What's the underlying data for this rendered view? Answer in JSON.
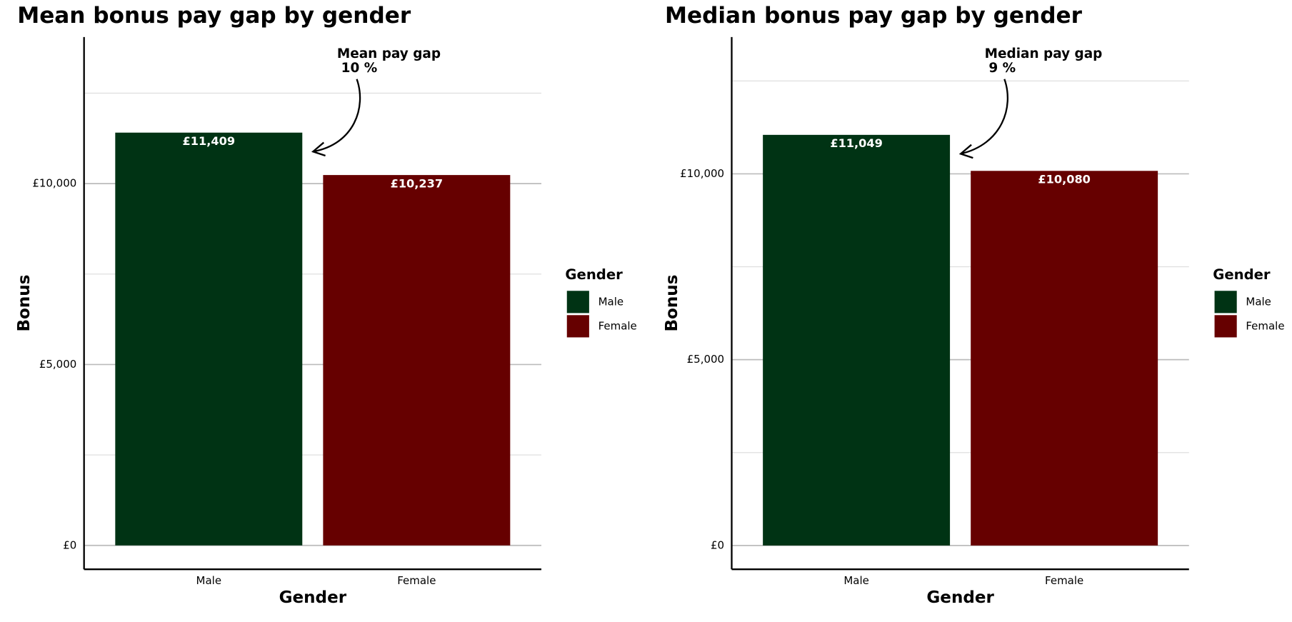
{
  "chart_data": [
    {
      "type": "bar",
      "title": "Mean bonus pay gap by gender",
      "x_label": "Gender",
      "y_label": "Bonus",
      "categories": [
        "Male",
        "Female"
      ],
      "values": [
        11409,
        10237
      ],
      "value_labels": [
        "£11,409",
        "£10,237"
      ],
      "colors": [
        "#003314",
        "#660000"
      ],
      "ylim": [
        -660,
        14050
      ],
      "yticks": [
        {
          "value": 0,
          "label": "£0"
        },
        {
          "value": 5000,
          "label": "£5,000"
        },
        {
          "value": 10000,
          "label": "£10,000"
        }
      ],
      "minor_yticks": [
        2500,
        7500,
        12500
      ],
      "grid": true,
      "legend": {
        "title": "Gender",
        "position": "right"
      },
      "annotation": {
        "title": "Mean pay gap",
        "text": "10 %"
      }
    },
    {
      "type": "bar",
      "title": "Median bonus pay gap by gender",
      "x_label": "Gender",
      "y_label": "Bonus",
      "categories": [
        "Male",
        "Female"
      ],
      "values": [
        11049,
        10080
      ],
      "value_labels": [
        "£11,049",
        "£10,080"
      ],
      "colors": [
        "#003314",
        "#660000"
      ],
      "ylim": [
        -640,
        13680
      ],
      "yticks": [
        {
          "value": 0,
          "label": "£0"
        },
        {
          "value": 5000,
          "label": "£5,000"
        },
        {
          "value": 10000,
          "label": "£10,000"
        }
      ],
      "minor_yticks": [
        2500,
        7500,
        12500
      ],
      "grid": true,
      "legend": {
        "title": "Gender",
        "position": "right"
      },
      "annotation": {
        "title": "Median pay gap",
        "text": "9 %"
      }
    }
  ]
}
